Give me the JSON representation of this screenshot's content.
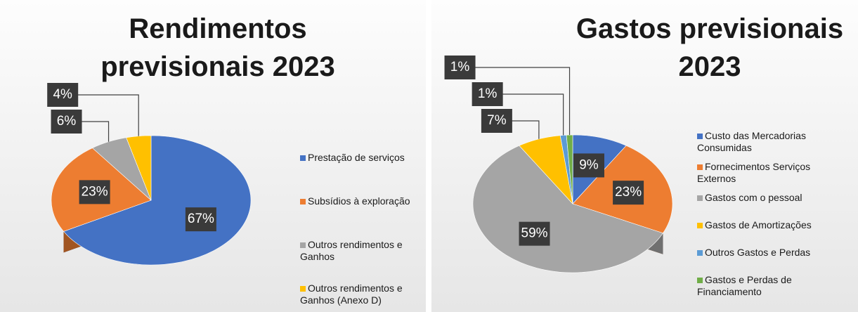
{
  "chart_data": [
    {
      "type": "pie",
      "title": "Rendimentos previsionais 2023",
      "categories": [
        "Prestação de serviços",
        "Subsídios à exploração",
        "Outros rendimentos e Ganhos",
        "Outros rendimentos e Ganhos (Anexo D)"
      ],
      "values": [
        67,
        23,
        6,
        4
      ],
      "value_labels": [
        "67%",
        "23%",
        "6%",
        "4%"
      ],
      "colors": [
        "#4472c4",
        "#ed7d31",
        "#a5a5a5",
        "#ffc000"
      ]
    },
    {
      "type": "pie",
      "title": "Gastos previsionais 2023",
      "categories": [
        "Custo das Mercadorias Consumidas",
        "Fornecimentos Serviços Externos",
        "Gastos com o pessoal",
        "Gastos de Amortizações",
        "Outros Gastos e Perdas",
        "Gastos e Perdas de Financiamento"
      ],
      "values": [
        9,
        23,
        59,
        7,
        1,
        1
      ],
      "value_labels": [
        "9%",
        "23%",
        "59%",
        "7%",
        "1%",
        "1%"
      ],
      "colors": [
        "#4472c4",
        "#ed7d31",
        "#a5a5a5",
        "#ffc000",
        "#5b9bd5",
        "#70ad47"
      ]
    }
  ]
}
